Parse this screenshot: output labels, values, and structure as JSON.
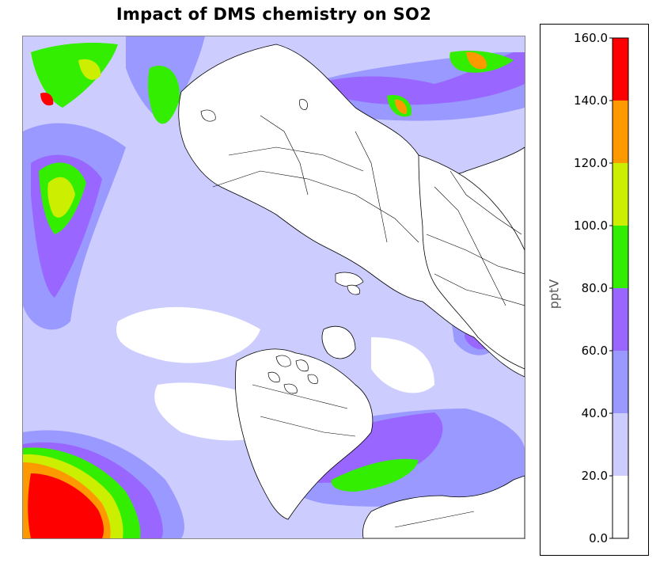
{
  "title": "Impact of DMS chemistry on SO2",
  "colorbar": {
    "unit": "pptV",
    "ticks": [
      "160.0",
      "140.0",
      "120.0",
      "100.0",
      "80.0",
      "60.0",
      "40.0",
      "20.0",
      "0.0"
    ],
    "bins": [
      {
        "min": 0,
        "max": 20,
        "color": "#ffffff"
      },
      {
        "min": 20,
        "max": 40,
        "color": "#ccccff"
      },
      {
        "min": 40,
        "max": 60,
        "color": "#9999ff"
      },
      {
        "min": 60,
        "max": 80,
        "color": "#9966ff"
      },
      {
        "min": 80,
        "max": 100,
        "color": "#33ee00"
      },
      {
        "min": 100,
        "max": 120,
        "color": "#ccee00"
      },
      {
        "min": 120,
        "max": 140,
        "color": "#ff9900"
      },
      {
        "min": 140,
        "max": 160,
        "color": "#ff0000"
      }
    ]
  },
  "map": {
    "projection": "polar-stereographic",
    "hemisphere": "northern",
    "colors": {
      "land_fill": "#ffffff",
      "coastline": "#000000"
    }
  }
}
